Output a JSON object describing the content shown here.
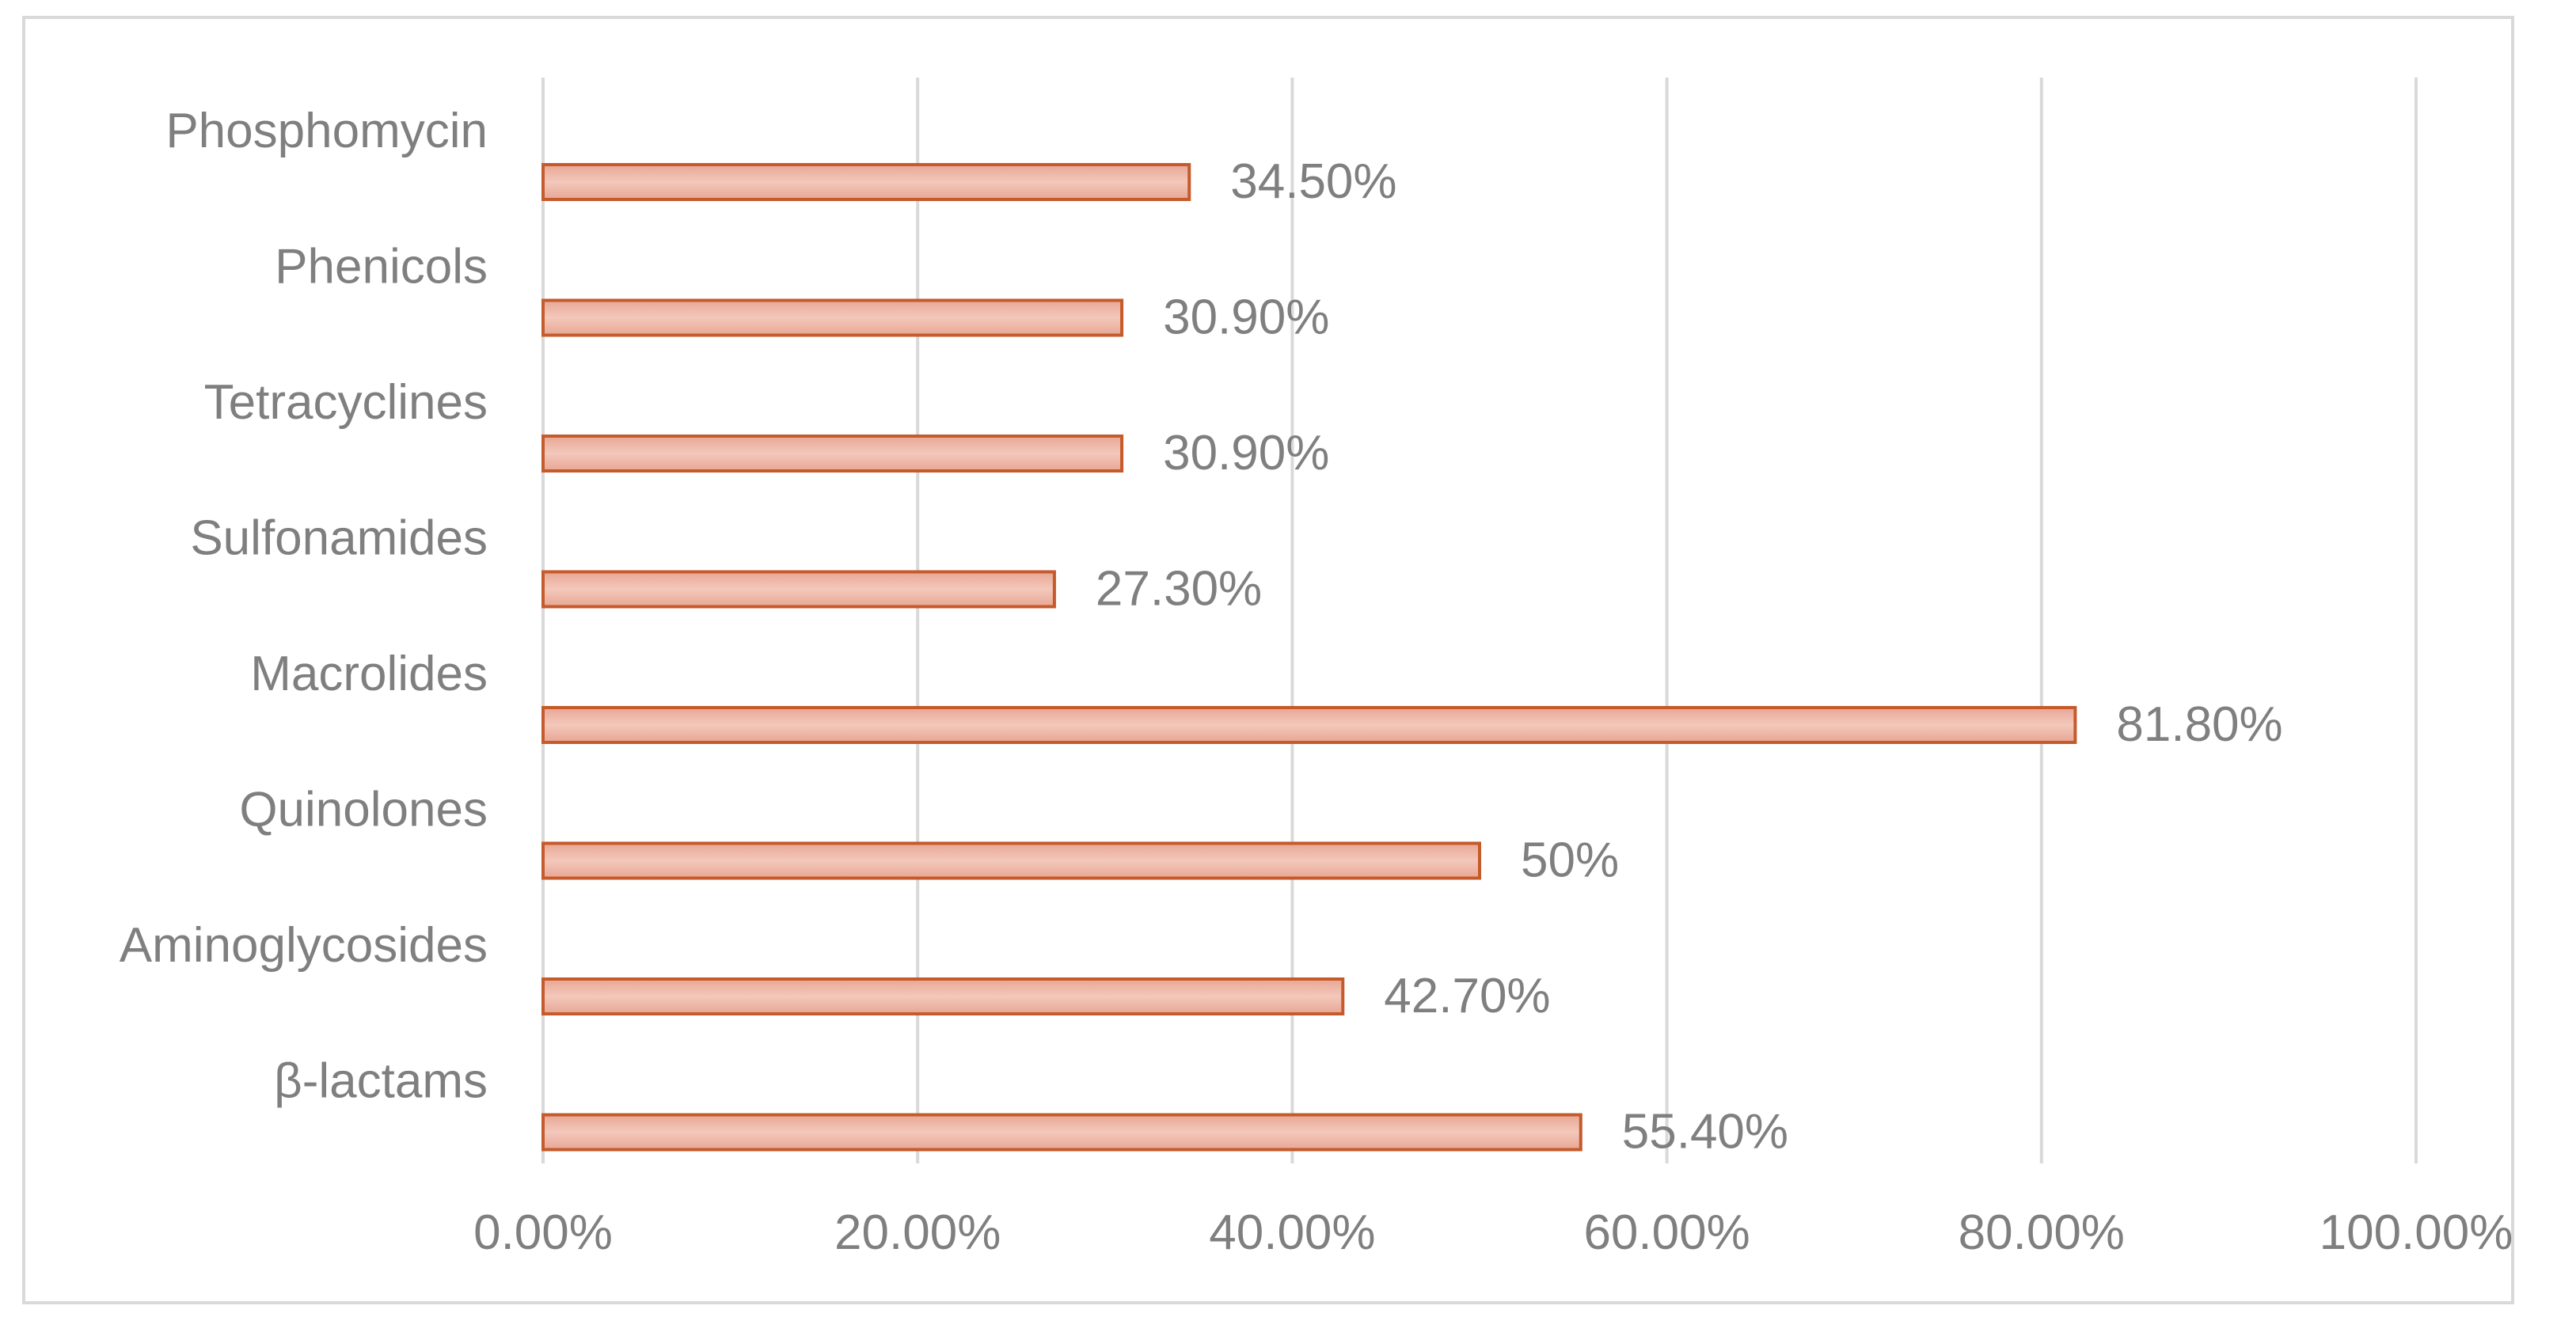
{
  "chart_data": {
    "type": "bar",
    "orientation": "horizontal",
    "categories": [
      "Phosphomycin",
      "Phenicols",
      "Tetracyclines",
      "Sulfonamides",
      "Macrolides",
      "Quinolones",
      "Aminoglycosides",
      "β-lactams"
    ],
    "values": [
      34.5,
      30.9,
      30.9,
      27.3,
      81.8,
      50,
      42.7,
      55.4
    ],
    "data_labels": [
      "34.50%",
      "30.90%",
      "30.90%",
      "27.30%",
      "81.80%",
      "50%",
      "42.70%",
      "55.40%"
    ],
    "x_ticks": [
      0,
      20,
      40,
      60,
      80,
      100
    ],
    "x_tick_labels": [
      "0.00%",
      "20.00%",
      "40.00%",
      "60.00%",
      "80.00%",
      "100.00%"
    ],
    "xlim": [
      0,
      100
    ],
    "grid": true,
    "legend": "none",
    "title": "",
    "xlabel": "",
    "ylabel": "",
    "colors": {
      "bar_fill": "#e8a694",
      "bar_fill_light": "#f3c8bb",
      "bar_stroke": "#c55a2b",
      "grid": "#d9d9d9",
      "text": "#7f7f7f"
    }
  }
}
